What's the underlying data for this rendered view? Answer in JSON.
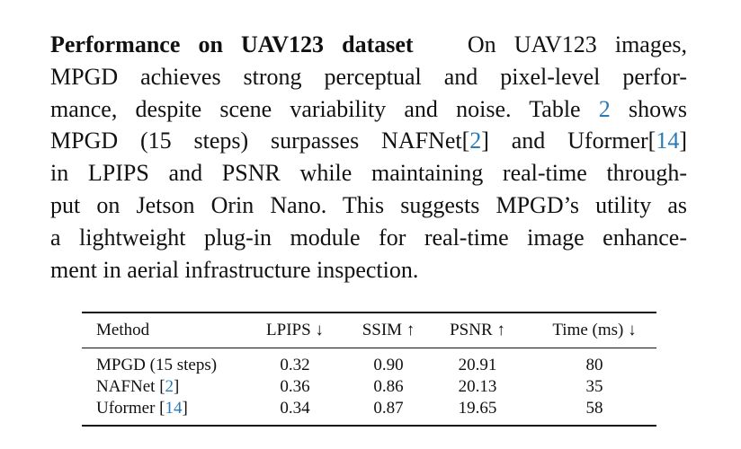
{
  "paragraph": {
    "heading": "Performance on UAV123 dataset",
    "lines": [
      {
        "text": "On UAV123 images,"
      },
      {
        "text": "MPGD achieves strong perceptual and pixel-level perfor-"
      },
      {
        "text": "mance, despite scene variability and noise.  Table ",
        "ref": "2",
        "after": " shows"
      },
      {
        "text": "MPGD (15 steps) surpasses NAFNet[",
        "ref": "2",
        "after": "] and Uformer[",
        "ref2": "14",
        "after2": "]"
      },
      {
        "text": "in LPIPS and PSNR while maintaining real-time through-"
      },
      {
        "text": "put on Jetson Orin Nano.  This suggests MPGD’s utility as"
      },
      {
        "text": "a lightweight plug-in module for real-time image enhance-"
      },
      {
        "text": "ment in aerial infrastructure inspection."
      }
    ]
  },
  "table": {
    "headers": [
      "Method",
      "LPIPS ↓",
      "SSIM ↑",
      "PSNR ↑",
      "Time (ms) ↓"
    ],
    "rows": [
      {
        "method": "MPGD (15 steps)",
        "cite": "",
        "lpips": "0.32",
        "ssim": "0.90",
        "psnr": "20.91",
        "time": "80"
      },
      {
        "method": "NAFNet [",
        "cite": "2",
        "close": "]",
        "lpips": "0.36",
        "ssim": "0.86",
        "psnr": "20.13",
        "time": "35"
      },
      {
        "method": "Uformer [",
        "cite": "14",
        "close": "]",
        "lpips": "0.34",
        "ssim": "0.87",
        "psnr": "19.65",
        "time": "58"
      }
    ]
  },
  "colors": {
    "citation": "#2a7ab8",
    "text": "#111111"
  }
}
